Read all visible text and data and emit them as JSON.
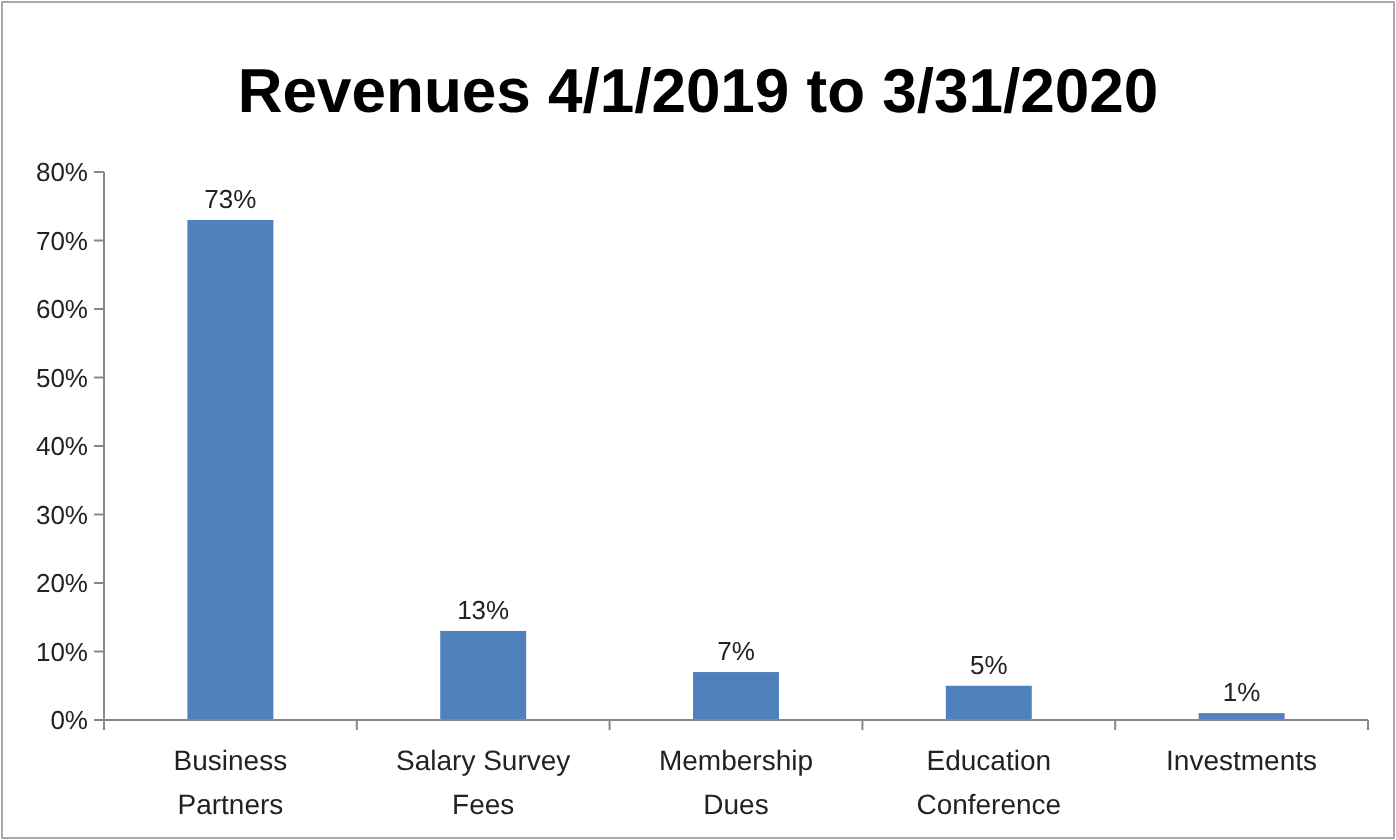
{
  "chart_data": {
    "type": "bar",
    "title": "Revenues 4/1/2019 to 3/31/2020",
    "categories": [
      "Business Partners",
      "Salary Survey Fees",
      "Membership Dues",
      "Education Conference",
      "Investments"
    ],
    "values": [
      73,
      13,
      7,
      5,
      1
    ],
    "value_labels": [
      "73%",
      "13%",
      "7%",
      "5%",
      "1%"
    ],
    "color": "#4f81bd",
    "ylim": [
      0,
      80
    ],
    "yticks": [
      {
        "value": 0,
        "label": "0%"
      },
      {
        "value": 10,
        "label": "10%"
      },
      {
        "value": 20,
        "label": "20%"
      },
      {
        "value": 30,
        "label": "30%"
      },
      {
        "value": 40,
        "label": "40%"
      },
      {
        "value": 50,
        "label": "50%"
      },
      {
        "value": 60,
        "label": "60%"
      },
      {
        "value": 70,
        "label": "70%"
      },
      {
        "value": 80,
        "label": "80%"
      }
    ],
    "grid": false
  }
}
